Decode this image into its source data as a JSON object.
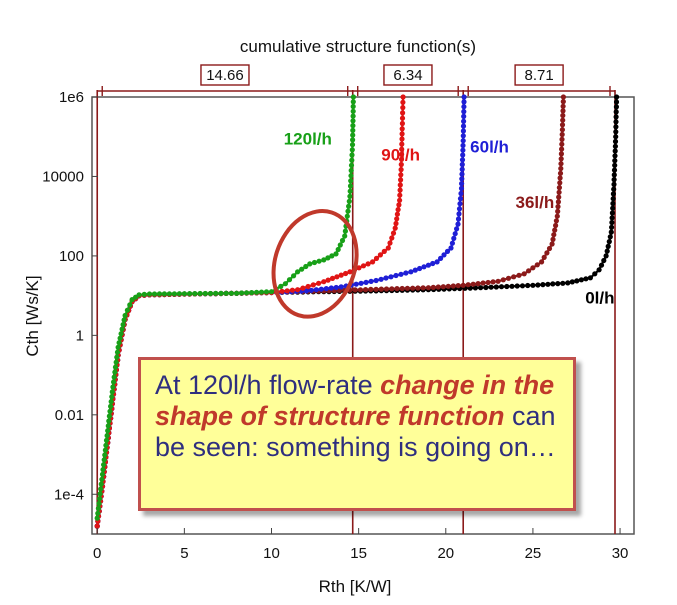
{
  "chart_data": {
    "type": "line",
    "title": "cumulative structure function(s)",
    "xlabel": "Rth  [K/W]",
    "ylabel": "Cth  [Ws/K]",
    "xlim": [
      -0.3,
      30.8
    ],
    "ylim_log10": [
      -5,
      6
    ],
    "yscale": "log",
    "x_ticks": [
      0,
      5,
      10,
      15,
      20,
      25,
      30
    ],
    "x_tick_labels": [
      "0",
      "5",
      "10",
      "15",
      "20",
      "25",
      "30"
    ],
    "y_ticks_log10": [
      -4,
      -2,
      0,
      2,
      4,
      6
    ],
    "y_tick_labels": [
      "1e-4",
      "0.01",
      "1",
      "100",
      "10000",
      "1e6"
    ],
    "grid": false,
    "series": [
      {
        "name": "0l/h",
        "color": "#000000",
        "x": [
          0,
          0.3,
          0.6,
          0.9,
          1.2,
          1.6,
          2.0,
          2.4,
          3,
          5,
          8,
          10,
          13,
          16,
          19,
          22,
          25,
          27,
          28.3,
          28.8,
          29.2,
          29.5,
          29.65,
          29.75,
          29.8
        ],
        "y_log10": [
          -4.8,
          -3.8,
          -2.7,
          -1.6,
          -0.5,
          0.4,
          0.85,
          1.0,
          1.02,
          1.04,
          1.06,
          1.08,
          1.1,
          1.12,
          1.15,
          1.2,
          1.26,
          1.32,
          1.45,
          1.65,
          2.0,
          2.6,
          3.8,
          5.0,
          6.0
        ]
      },
      {
        "name": "36l/h",
        "color": "#8b1a1a",
        "x": [
          0,
          0.3,
          0.6,
          0.9,
          1.2,
          1.6,
          2.0,
          2.4,
          3,
          5,
          8,
          10,
          13,
          16,
          19,
          21,
          23,
          24.5,
          25.5,
          26.1,
          26.4,
          26.6,
          26.7,
          26.75
        ],
        "y_log10": [
          -4.8,
          -3.8,
          -2.7,
          -1.6,
          -0.5,
          0.4,
          0.85,
          1.0,
          1.02,
          1.04,
          1.06,
          1.08,
          1.12,
          1.16,
          1.2,
          1.26,
          1.36,
          1.55,
          1.85,
          2.3,
          3.0,
          4.2,
          5.3,
          6.0
        ]
      },
      {
        "name": "60l/h",
        "color": "#1f1fd6",
        "x": [
          0,
          0.3,
          0.6,
          0.9,
          1.2,
          1.6,
          2.0,
          2.4,
          3,
          5,
          8,
          10,
          12,
          14,
          16,
          18,
          19.5,
          20.3,
          20.7,
          20.9,
          21.0,
          21.05
        ],
        "y_log10": [
          -4.8,
          -3.8,
          -2.7,
          -1.6,
          -0.5,
          0.4,
          0.85,
          1.0,
          1.02,
          1.04,
          1.06,
          1.08,
          1.12,
          1.22,
          1.38,
          1.6,
          1.85,
          2.2,
          2.8,
          3.7,
          4.9,
          6.0
        ]
      },
      {
        "name": "90l/h",
        "color": "#e01515",
        "x": [
          0,
          0.3,
          0.6,
          0.9,
          1.2,
          1.6,
          2.0,
          2.4,
          3,
          5,
          8,
          10,
          11.5,
          13,
          14.5,
          15.8,
          16.7,
          17.1,
          17.35,
          17.45,
          17.5,
          17.55
        ],
        "y_log10": [
          -4.8,
          -3.8,
          -2.7,
          -1.6,
          -0.5,
          0.4,
          0.85,
          1.0,
          1.02,
          1.04,
          1.06,
          1.08,
          1.15,
          1.35,
          1.6,
          1.85,
          2.2,
          2.7,
          3.4,
          4.3,
          5.2,
          6.0
        ]
      },
      {
        "name": "120l/h",
        "color": "#18a018",
        "x": [
          0,
          0.3,
          0.6,
          0.9,
          1.2,
          1.6,
          2.0,
          2.4,
          3,
          5,
          8,
          10,
          10.8,
          11.5,
          12.2,
          13,
          13.7,
          14.2,
          14.5,
          14.65,
          14.7
        ],
        "y_log10": [
          -4.6,
          -3.5,
          -2.4,
          -1.3,
          -0.3,
          0.5,
          0.9,
          1.02,
          1.04,
          1.05,
          1.06,
          1.1,
          1.3,
          1.6,
          1.8,
          1.9,
          2.05,
          2.5,
          3.5,
          4.8,
          6.0
        ]
      }
    ],
    "dimension_markers": [
      {
        "label": "14.66",
        "x_start": 0,
        "x_end": 14.66
      },
      {
        "label": "6.34",
        "x_start": 14.66,
        "x_end": 21.0
      },
      {
        "label": "8.71",
        "x_start": 21.0,
        "x_end": 29.71
      }
    ],
    "vertical_lines_x": [
      0,
      14.66,
      21.0,
      29.71
    ],
    "highlight_ellipse": {
      "cx": 12.5,
      "cy_log10": 1.8,
      "color": "#c0392b"
    },
    "series_label_anchor_x": [
      28.0,
      24.0,
      21.4,
      16.3,
      10.7
    ],
    "series_label_anchor_log10": [
      0.8,
      3.2,
      4.6,
      4.4,
      4.8
    ]
  },
  "callout": {
    "part1": "At 120l/h flow-rate ",
    "part2": "change in the shape of structure function",
    "part3": " can be seen: something is going on…"
  }
}
